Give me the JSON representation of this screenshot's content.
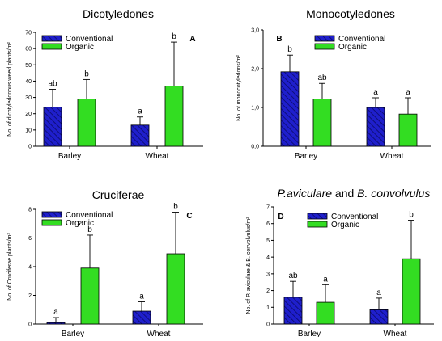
{
  "chart_data": [
    {
      "type": "bar",
      "panel_label": "A",
      "title": "Dicotyledones",
      "ylabel": "No. of dicotyledonous weed plants/m²",
      "categories": [
        "Barley",
        "Wheat"
      ],
      "ylim": [
        0,
        70
      ],
      "yticks": [
        0,
        10,
        20,
        30,
        40,
        50,
        60,
        70
      ],
      "ytick_labels": [
        "0",
        "10",
        "20",
        "30",
        "40",
        "50",
        "60",
        "70"
      ],
      "legend": "top-left",
      "series": [
        {
          "name": "Conventional",
          "color": "#1f1fcc",
          "hatched": true,
          "values": [
            24,
            13
          ],
          "err_upper": [
            35,
            18
          ],
          "letters": [
            "ab",
            "a"
          ]
        },
        {
          "name": "Organic",
          "color": "#33dd22",
          "hatched": false,
          "values": [
            29,
            37
          ],
          "err_upper": [
            41,
            64
          ],
          "letters": [
            "b",
            "b"
          ]
        }
      ]
    },
    {
      "type": "bar",
      "panel_label": "B",
      "title": "Monocotyledones",
      "ylabel": "No. of monocotyledons/m²",
      "categories": [
        "Barley",
        "Wheat"
      ],
      "ylim": [
        0,
        3
      ],
      "yticks": [
        0,
        1,
        2,
        3
      ],
      "ytick_labels": [
        "0,0",
        "1,0",
        "2,0",
        "3,0"
      ],
      "legend": "top-right",
      "series": [
        {
          "name": "Conventional",
          "color": "#1f1fcc",
          "hatched": true,
          "values": [
            1.92,
            1.0
          ],
          "err_upper": [
            2.35,
            1.25
          ],
          "letters": [
            "b",
            "a"
          ]
        },
        {
          "name": "Organic",
          "color": "#33dd22",
          "hatched": false,
          "values": [
            1.22,
            0.83
          ],
          "err_upper": [
            1.62,
            1.25
          ],
          "letters": [
            "ab",
            "a"
          ]
        }
      ]
    },
    {
      "type": "bar",
      "panel_label": "C",
      "title": "Cruciferae",
      "ylabel": "No. of Cruciferae plants/m²",
      "categories": [
        "Barley",
        "Wheat"
      ],
      "ylim": [
        0,
        8
      ],
      "yticks": [
        0,
        2,
        4,
        6,
        8
      ],
      "ytick_labels": [
        "0",
        "2",
        "4",
        "6",
        "8"
      ],
      "legend": "top-left",
      "series": [
        {
          "name": "Conventional",
          "color": "#1f1fcc",
          "hatched": true,
          "values": [
            0.1,
            0.9
          ],
          "err_upper": [
            0.45,
            1.55
          ],
          "letters": [
            "a",
            "a"
          ]
        },
        {
          "name": "Organic",
          "color": "#33dd22",
          "hatched": false,
          "values": [
            3.9,
            4.9
          ],
          "err_upper": [
            6.2,
            7.8
          ],
          "letters": [
            "b",
            "b"
          ]
        }
      ]
    },
    {
      "type": "bar",
      "panel_label": "D",
      "title_parts": [
        "P.aviculare",
        " and ",
        "B. convolvulus"
      ],
      "ylabel": "No. of P. aviculare & B. convolvulus/m²",
      "categories": [
        "Barley",
        "Wheat"
      ],
      "ylim": [
        0,
        7
      ],
      "yticks": [
        0,
        1,
        2,
        3,
        4,
        5,
        6,
        7
      ],
      "ytick_labels": [
        "0",
        "1",
        "2",
        "3",
        "4",
        "5",
        "6",
        "7"
      ],
      "legend": "top-center",
      "series": [
        {
          "name": "Conventional",
          "color": "#1f1fcc",
          "hatched": true,
          "values": [
            1.6,
            0.85
          ],
          "err_upper": [
            2.55,
            1.55
          ],
          "letters": [
            "ab",
            "a"
          ]
        },
        {
          "name": "Organic",
          "color": "#33dd22",
          "hatched": false,
          "values": [
            1.3,
            3.9
          ],
          "err_upper": [
            2.35,
            6.2
          ],
          "letters": [
            "a",
            "b"
          ]
        }
      ]
    }
  ]
}
